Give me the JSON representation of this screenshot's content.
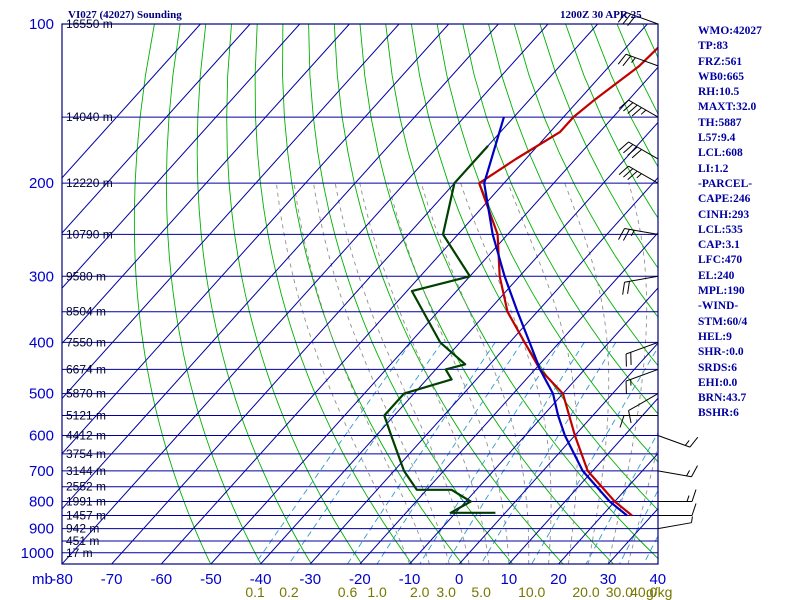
{
  "chart_title_left": "VI027 (42027) Sounding",
  "chart_title_right": "1200Z 30 APR 25",
  "chart_data": {
    "type": "line",
    "axes": {
      "pressure_axis_label": "mb",
      "pressure_ticks": [
        100,
        200,
        300,
        400,
        500,
        600,
        700,
        800,
        900,
        1000
      ],
      "temperature_ticks": [
        -80,
        -70,
        -60,
        -50,
        -40,
        -30,
        -20,
        -10,
        0,
        10,
        20,
        30,
        40
      ],
      "mixing_ratio_ticks": [
        "0.1",
        "0.2",
        "0.6",
        "1.0",
        "2.0",
        "3.0",
        "5.0",
        "10.0",
        "20.0",
        "30.0",
        "40.0"
      ],
      "mixing_ratio_unit": "g/kg",
      "height_ticks": [
        {
          "p": 100,
          "label": "16550 m"
        },
        {
          "p": 150,
          "label": "14040 m"
        },
        {
          "p": 200,
          "label": "12220 m"
        },
        {
          "p": 250,
          "label": "10790 m"
        },
        {
          "p": 300,
          "label": "9580 m"
        },
        {
          "p": 350,
          "label": "8504 m"
        },
        {
          "p": 400,
          "label": "7550 m"
        },
        {
          "p": 450,
          "label": "6674 m"
        },
        {
          "p": 500,
          "label": "5870 m"
        },
        {
          "p": 550,
          "label": "5121 m"
        },
        {
          "p": 600,
          "label": "4412 m"
        },
        {
          "p": 650,
          "label": "3754 m"
        },
        {
          "p": 700,
          "label": "3144 m"
        },
        {
          "p": 750,
          "label": "2552 m"
        },
        {
          "p": 800,
          "label": "1991 m"
        },
        {
          "p": 850,
          "label": "1457 m"
        },
        {
          "p": 900,
          "label": "942 m"
        },
        {
          "p": 950,
          "label": "451 m"
        },
        {
          "p": 1000,
          "label": "17 m"
        }
      ]
    },
    "series": [
      {
        "role": "temperature",
        "color": "#c00000",
        "points": [
          {
            "p": 100,
            "t": -53
          },
          {
            "p": 120,
            "t": -54
          },
          {
            "p": 140,
            "t": -57
          },
          {
            "p": 150,
            "t": -58
          },
          {
            "p": 160,
            "t": -58
          },
          {
            "p": 180,
            "t": -62
          },
          {
            "p": 200,
            "t": -65
          },
          {
            "p": 250,
            "t": -52
          },
          {
            "p": 300,
            "t": -44
          },
          {
            "p": 350,
            "t": -36
          },
          {
            "p": 400,
            "t": -27
          },
          {
            "p": 450,
            "t": -19
          },
          {
            "p": 500,
            "t": -10
          },
          {
            "p": 600,
            "t": 0
          },
          {
            "p": 700,
            "t": 9
          },
          {
            "p": 800,
            "t": 20
          },
          {
            "p": 850,
            "t": 26
          }
        ]
      },
      {
        "role": "dewpoint",
        "color": "#004000",
        "points": [
          {
            "p": 170,
            "t": -70
          },
          {
            "p": 200,
            "t": -70
          },
          {
            "p": 250,
            "t": -63
          },
          {
            "p": 300,
            "t": -50
          },
          {
            "p": 320,
            "t": -59
          },
          {
            "p": 400,
            "t": -44
          },
          {
            "p": 440,
            "t": -35
          },
          {
            "p": 450,
            "t": -38
          },
          {
            "p": 470,
            "t": -35
          },
          {
            "p": 500,
            "t": -42
          },
          {
            "p": 550,
            "t": -42
          },
          {
            "p": 600,
            "t": -37
          },
          {
            "p": 700,
            "t": -28
          },
          {
            "p": 760,
            "t": -22
          },
          {
            "p": 760,
            "t": -15
          },
          {
            "p": 800,
            "t": -9
          },
          {
            "p": 840,
            "t": -11
          },
          {
            "p": 840,
            "t": -2
          }
        ]
      },
      {
        "role": "parcel",
        "color": "#0000c0",
        "points": [
          {
            "p": 150,
            "t": -72
          },
          {
            "p": 200,
            "t": -64
          },
          {
            "p": 250,
            "t": -53
          },
          {
            "p": 300,
            "t": -43
          },
          {
            "p": 350,
            "t": -34
          },
          {
            "p": 400,
            "t": -26
          },
          {
            "p": 450,
            "t": -19
          },
          {
            "p": 500,
            "t": -12
          },
          {
            "p": 550,
            "t": -7
          },
          {
            "p": 600,
            "t": -2
          },
          {
            "p": 700,
            "t": 8
          },
          {
            "p": 800,
            "t": 19
          },
          {
            "p": 850,
            "t": 25
          }
        ]
      }
    ]
  },
  "indices": [
    "WMO:42027",
    "TP:83",
    "FRZ:561",
    "WB0:665",
    "RH:10.5",
    "MAXT:32.0",
    "TH:5887",
    "L57:9.4",
    "LCL:608",
    "LI:1.2",
    "-PARCEL-",
    "CAPE:246",
    "CINH:293",
    "LCL:535",
    "CAP:3.1",
    "LFC:470",
    "EL:240",
    "MPL:190",
    "-WIND-",
    "STM:60/4",
    "HEL:9",
    "SHR-:0.0",
    "SRDS:6",
    "EHI:0.0",
    "BRN:43.7",
    "BSHR:6"
  ],
  "wind_barbs": [
    {
      "p": 100,
      "dir": 290,
      "spd": 30
    },
    {
      "p": 120,
      "dir": 290,
      "spd": 25
    },
    {
      "p": 150,
      "dir": 300,
      "spd": 45
    },
    {
      "p": 180,
      "dir": 300,
      "spd": 40
    },
    {
      "p": 200,
      "dir": 300,
      "spd": 35
    },
    {
      "p": 250,
      "dir": 280,
      "spd": 25
    },
    {
      "p": 300,
      "dir": 260,
      "spd": 20
    },
    {
      "p": 400,
      "dir": 250,
      "spd": 20
    },
    {
      "p": 450,
      "dir": 250,
      "spd": 15
    },
    {
      "p": 500,
      "dir": 240,
      "spd": 10
    },
    {
      "p": 550,
      "dir": 270,
      "spd": 10
    },
    {
      "p": 600,
      "dir": 110,
      "spd": 15
    },
    {
      "p": 700,
      "dir": 100,
      "spd": 15
    },
    {
      "p": 800,
      "dir": 90,
      "spd": 15
    },
    {
      "p": 850,
      "dir": 90,
      "spd": 10
    },
    {
      "p": 900,
      "dir": 80,
      "spd": 5
    }
  ],
  "colors": {
    "frame": "#000080",
    "grid": "#0000a0",
    "dry_adiabat": "#00b000",
    "moist_adiabat": "#909090",
    "mixing_ratio": "#3399cc"
  }
}
